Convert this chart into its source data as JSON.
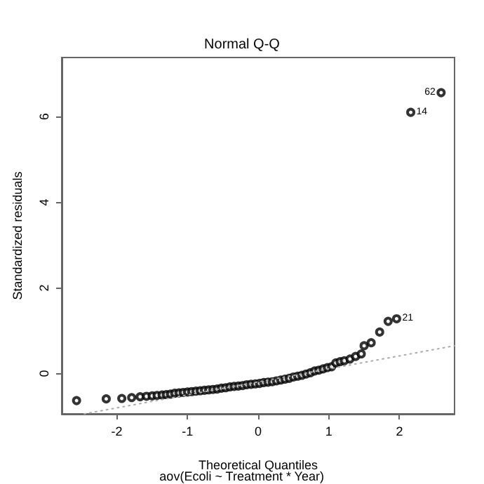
{
  "chart_data": {
    "type": "scatter",
    "title": "Normal Q-Q",
    "xlabel": "Theoretical Quantiles",
    "ylabel": "Standardized residuals",
    "annotations": [
      "aov(Ecoli ~ Treatment * Year)",
      {
        "text": "62",
        "x": 2.59,
        "y": 6.56
      },
      {
        "text": "14",
        "x": 2.16,
        "y": 6.1
      },
      {
        "text": "21",
        "x": 1.96,
        "y": 1.28
      }
    ],
    "series": [
      {
        "color": "#000000",
        "marker": "circle",
        "x": [
          -2.57,
          -2.15,
          -1.93,
          -1.79,
          -1.67,
          -1.58,
          -1.5,
          -1.43,
          -1.36,
          -1.3,
          -1.24,
          -1.18,
          -1.12,
          -1.06,
          -1.0,
          -0.94,
          -0.88,
          -0.82,
          -0.76,
          -0.7,
          -0.64,
          -0.58,
          -0.52,
          -0.46,
          -0.4,
          -0.34,
          -0.28,
          -0.22,
          -0.16,
          -0.1,
          -0.04,
          0.02,
          0.08,
          0.14,
          0.2,
          0.26,
          0.32,
          0.38,
          0.44,
          0.5,
          0.56,
          0.62,
          0.68,
          0.74,
          0.8,
          0.86,
          0.92,
          0.98,
          1.04,
          1.1,
          1.16,
          1.22,
          1.3,
          1.38,
          1.46,
          1.5,
          1.6,
          1.72,
          1.84,
          1.96,
          2.16,
          2.59
        ],
        "values": [
          -0.63,
          -0.59,
          -0.58,
          -0.56,
          -0.54,
          -0.53,
          -0.52,
          -0.51,
          -0.5,
          -0.49,
          -0.48,
          -0.46,
          -0.45,
          -0.44,
          -0.43,
          -0.42,
          -0.41,
          -0.4,
          -0.39,
          -0.38,
          -0.37,
          -0.36,
          -0.34,
          -0.33,
          -0.31,
          -0.3,
          -0.29,
          -0.28,
          -0.26,
          -0.25,
          -0.24,
          -0.23,
          -0.21,
          -0.2,
          -0.19,
          -0.17,
          -0.15,
          -0.13,
          -0.11,
          -0.08,
          -0.06,
          -0.04,
          -0.01,
          0.02,
          0.06,
          0.08,
          0.11,
          0.14,
          0.16,
          0.25,
          0.28,
          0.3,
          0.34,
          0.4,
          0.46,
          0.65,
          0.72,
          0.97,
          1.22,
          1.28,
          6.1,
          6.56
        ]
      },
      {
        "type": "line",
        "color": "#aaaaaa",
        "line_style": "dotted",
        "marker": "none",
        "x": [
          -2.46,
          2.78
        ],
        "values": [
          -0.94,
          0.65
        ]
      }
    ],
    "xlim": [
      -2.78,
      2.78
    ],
    "xticks": [
      -2,
      -1,
      0,
      1,
      2
    ],
    "ylim": [
      -0.94,
      7.38
    ],
    "yticks": [
      0,
      2,
      4,
      6
    ],
    "grid": false
  }
}
